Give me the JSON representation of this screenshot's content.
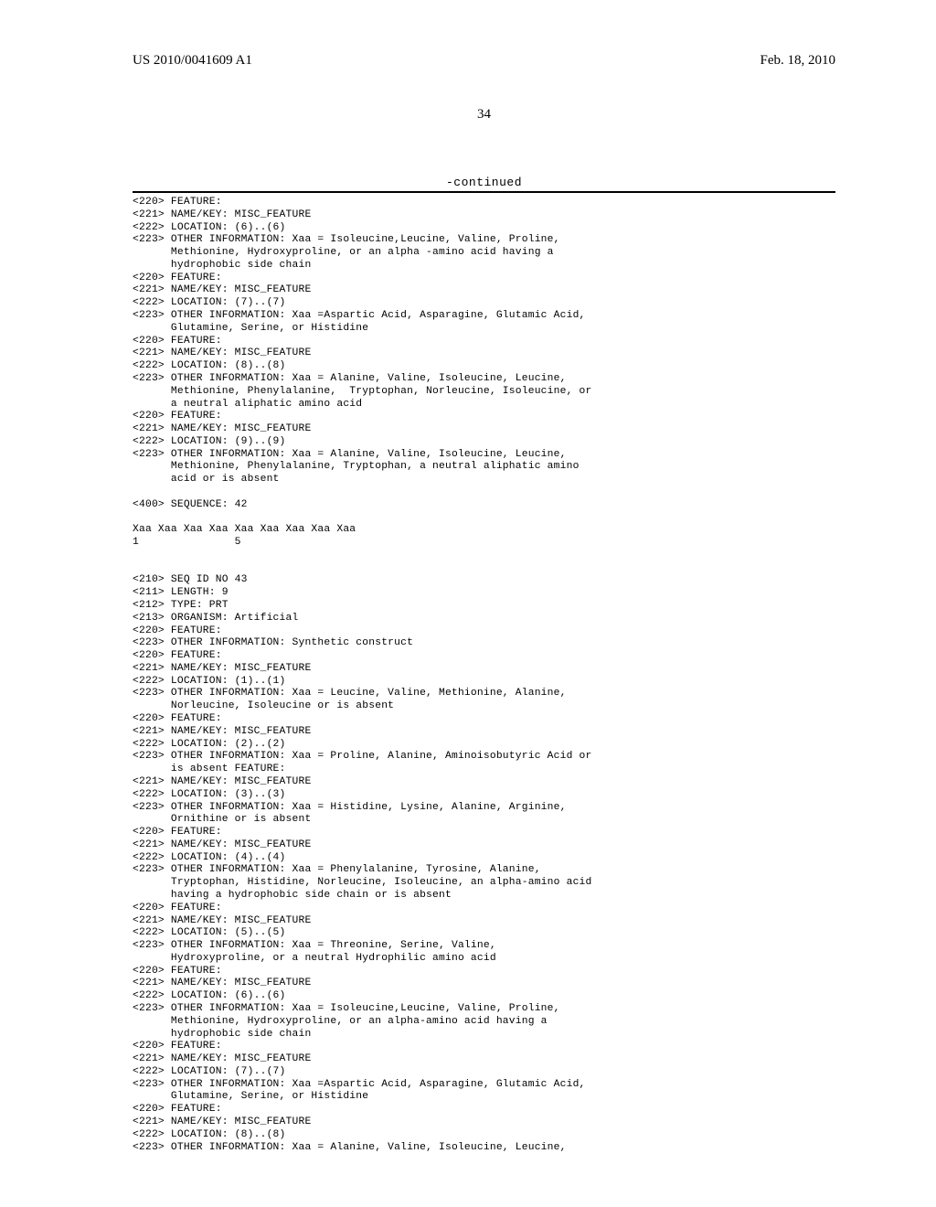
{
  "header": {
    "left": "US 2010/0041609 A1",
    "right": "Feb. 18, 2010"
  },
  "page_number": "34",
  "continued_label": "-continued",
  "listing": [
    {
      "t": "<220> FEATURE:"
    },
    {
      "t": "<221> NAME/KEY: MISC_FEATURE"
    },
    {
      "t": "<222> LOCATION: (6)..(6)"
    },
    {
      "t": "<223> OTHER INFORMATION: Xaa = Isoleucine,Leucine, Valine, Proline,"
    },
    {
      "t": "Methionine, Hydroxyproline, or an alpha -amino acid having a",
      "i": true
    },
    {
      "t": "hydrophobic side chain",
      "i": true
    },
    {
      "t": "<220> FEATURE:"
    },
    {
      "t": "<221> NAME/KEY: MISC_FEATURE"
    },
    {
      "t": "<222> LOCATION: (7)..(7)"
    },
    {
      "t": "<223> OTHER INFORMATION: Xaa =Aspartic Acid, Asparagine, Glutamic Acid,"
    },
    {
      "t": "Glutamine, Serine, or Histidine",
      "i": true
    },
    {
      "t": "<220> FEATURE:"
    },
    {
      "t": "<221> NAME/KEY: MISC_FEATURE"
    },
    {
      "t": "<222> LOCATION: (8)..(8)"
    },
    {
      "t": "<223> OTHER INFORMATION: Xaa = Alanine, Valine, Isoleucine, Leucine,"
    },
    {
      "t": "Methionine, Phenylalanine,  Tryptophan, Norleucine, Isoleucine, or",
      "i": true
    },
    {
      "t": "a neutral aliphatic amino acid",
      "i": true
    },
    {
      "t": "<220> FEATURE:"
    },
    {
      "t": "<221> NAME/KEY: MISC_FEATURE"
    },
    {
      "t": "<222> LOCATION: (9)..(9)"
    },
    {
      "t": "<223> OTHER INFORMATION: Xaa = Alanine, Valine, Isoleucine, Leucine,"
    },
    {
      "t": "Methionine, Phenylalanine, Tryptophan, a neutral aliphatic amino",
      "i": true
    },
    {
      "t": "acid or is absent",
      "i": true
    },
    {
      "t": ""
    },
    {
      "t": "<400> SEQUENCE: 42"
    },
    {
      "t": ""
    },
    {
      "t": "Xaa Xaa Xaa Xaa Xaa Xaa Xaa Xaa Xaa"
    },
    {
      "t": "1               5"
    },
    {
      "t": ""
    },
    {
      "t": ""
    },
    {
      "t": "<210> SEQ ID NO 43"
    },
    {
      "t": "<211> LENGTH: 9"
    },
    {
      "t": "<212> TYPE: PRT"
    },
    {
      "t": "<213> ORGANISM: Artificial"
    },
    {
      "t": "<220> FEATURE:"
    },
    {
      "t": "<223> OTHER INFORMATION: Synthetic construct"
    },
    {
      "t": "<220> FEATURE:"
    },
    {
      "t": "<221> NAME/KEY: MISC_FEATURE"
    },
    {
      "t": "<222> LOCATION: (1)..(1)"
    },
    {
      "t": "<223> OTHER INFORMATION: Xaa = Leucine, Valine, Methionine, Alanine,"
    },
    {
      "t": "Norleucine, Isoleucine or is absent",
      "i": true
    },
    {
      "t": "<220> FEATURE:"
    },
    {
      "t": "<221> NAME/KEY: MISC_FEATURE"
    },
    {
      "t": "<222> LOCATION: (2)..(2)"
    },
    {
      "t": "<223> OTHER INFORMATION: Xaa = Proline, Alanine, Aminoisobutyric Acid or"
    },
    {
      "t": "is absent FEATURE:",
      "i": true
    },
    {
      "t": "<221> NAME/KEY: MISC_FEATURE"
    },
    {
      "t": "<222> LOCATION: (3)..(3)"
    },
    {
      "t": "<223> OTHER INFORMATION: Xaa = Histidine, Lysine, Alanine, Arginine,"
    },
    {
      "t": "Ornithine or is absent",
      "i": true
    },
    {
      "t": "<220> FEATURE:"
    },
    {
      "t": "<221> NAME/KEY: MISC_FEATURE"
    },
    {
      "t": "<222> LOCATION: (4)..(4)"
    },
    {
      "t": "<223> OTHER INFORMATION: Xaa = Phenylalanine, Tyrosine, Alanine,"
    },
    {
      "t": "Tryptophan, Histidine, Norleucine, Isoleucine, an alpha-amino acid",
      "i": true
    },
    {
      "t": "having a hydrophobic side chain or is absent",
      "i": true
    },
    {
      "t": "<220> FEATURE:"
    },
    {
      "t": "<221> NAME/KEY: MISC_FEATURE"
    },
    {
      "t": "<222> LOCATION: (5)..(5)"
    },
    {
      "t": "<223> OTHER INFORMATION: Xaa = Threonine, Serine, Valine,"
    },
    {
      "t": "Hydroxyproline, or a neutral Hydrophilic amino acid",
      "i": true
    },
    {
      "t": "<220> FEATURE:"
    },
    {
      "t": "<221> NAME/KEY: MISC_FEATURE"
    },
    {
      "t": "<222> LOCATION: (6)..(6)"
    },
    {
      "t": "<223> OTHER INFORMATION: Xaa = Isoleucine,Leucine, Valine, Proline,"
    },
    {
      "t": "Methionine, Hydroxyproline, or an alpha-amino acid having a",
      "i": true
    },
    {
      "t": "hydrophobic side chain",
      "i": true
    },
    {
      "t": "<220> FEATURE:"
    },
    {
      "t": "<221> NAME/KEY: MISC_FEATURE"
    },
    {
      "t": "<222> LOCATION: (7)..(7)"
    },
    {
      "t": "<223> OTHER INFORMATION: Xaa =Aspartic Acid, Asparagine, Glutamic Acid,"
    },
    {
      "t": "Glutamine, Serine, or Histidine",
      "i": true
    },
    {
      "t": "<220> FEATURE:"
    },
    {
      "t": "<221> NAME/KEY: MISC_FEATURE"
    },
    {
      "t": "<222> LOCATION: (8)..(8)"
    },
    {
      "t": "<223> OTHER INFORMATION: Xaa = Alanine, Valine, Isoleucine, Leucine,"
    }
  ]
}
